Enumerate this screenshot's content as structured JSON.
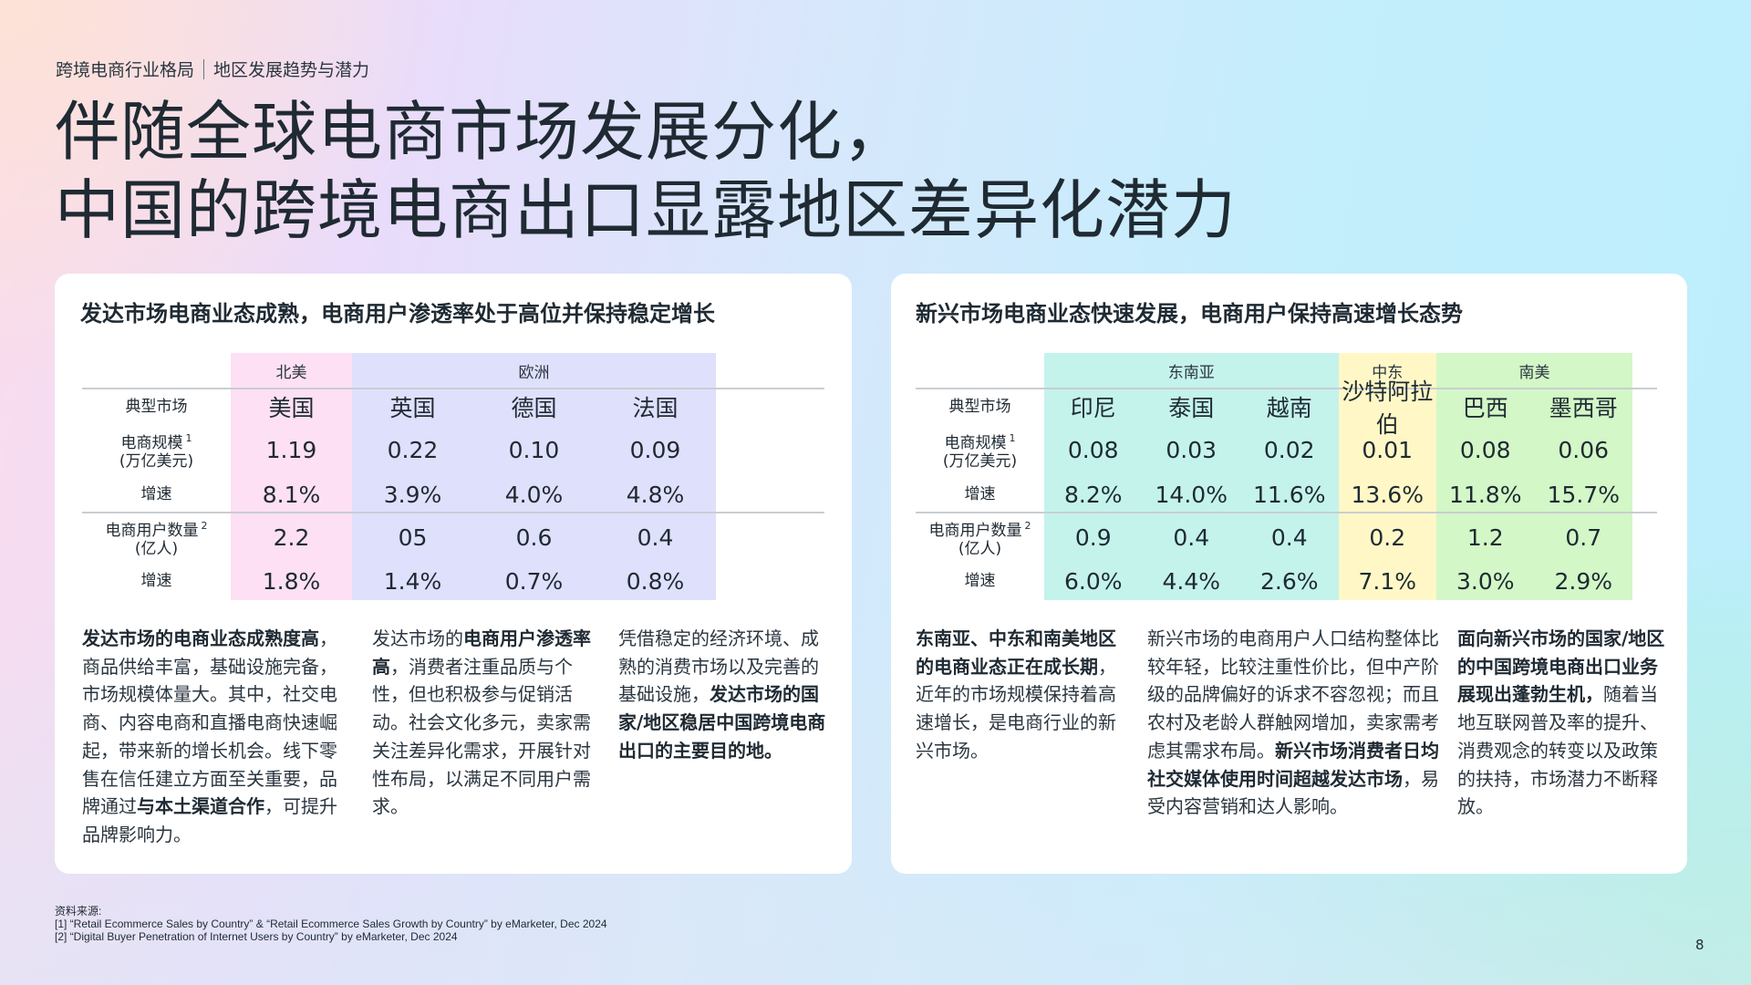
{
  "breadcrumb": {
    "section": "跨境电商行业格局",
    "subsection": "地区发展趋势与潜力"
  },
  "title": {
    "line1": "伴随全球电商市场发展分化，",
    "line2": "中国的跨境电商出口显露地区差异化潜力"
  },
  "colors": {
    "north_america": "#fde0f3",
    "europe": "#dfe0fb",
    "southeast_asia": "#c4f3ec",
    "middle_east": "#fff8c6",
    "south_america": "#d3f7c7",
    "divider": "#c9cdd3",
    "text": "#1f2a33"
  },
  "left_card": {
    "title": "发达市场电商业态成熟，电商用户渗透率处于高位并保持稳定增长",
    "table": {
      "row_labels": {
        "market": "典型市场",
        "scale": "电商规模",
        "scale_note": "1",
        "scale_unit": "(万亿美元)",
        "scale_growth": "增速",
        "users": "电商用户数量",
        "users_note": "2",
        "users_unit": "(亿人)",
        "users_growth": "增速"
      },
      "regions": [
        {
          "name": "北美",
          "span": 1
        },
        {
          "name": "欧洲",
          "span": 3
        }
      ],
      "columns": [
        {
          "market": "美国",
          "scale": "1.19",
          "scale_growth": "8.1%",
          "users": "2.2",
          "users_growth": "1.8%"
        },
        {
          "market": "英国",
          "scale": "0.22",
          "scale_growth": "3.9%",
          "users": "05",
          "users_growth": "1.4%"
        },
        {
          "market": "德国",
          "scale": "0.10",
          "scale_growth": "4.0%",
          "users": "0.6",
          "users_growth": "0.7%"
        },
        {
          "market": "法国",
          "scale": "0.09",
          "scale_growth": "4.8%",
          "users": "0.4",
          "users_growth": "0.8%"
        }
      ]
    },
    "paragraphs": [
      {
        "segments": [
          {
            "text": "发达市场的电商业态成熟度高",
            "bold": true
          },
          {
            "text": "，商品供给丰富，基础设施完备，市场规模体量大。其中，社交电商、内容电商和直播电商快速崛起，带来新的增长机会。线下零售在信任建立方面至关重要，品牌通过",
            "bold": false
          },
          {
            "text": "与本土渠道合作",
            "bold": true
          },
          {
            "text": "，可提升品牌影响力。",
            "bold": false
          }
        ]
      },
      {
        "segments": [
          {
            "text": "发达市场的",
            "bold": false
          },
          {
            "text": "电商用户渗透率高",
            "bold": true
          },
          {
            "text": "，消费者注重品质与个性，但也积极参与促销活动。社会文化多元，卖家需关注差异化需求，开展针对性布局，以满足不同用户需求。",
            "bold": false
          }
        ]
      },
      {
        "segments": [
          {
            "text": "凭借稳定的经济环境、成熟的消费市场以及完善的基础设施，",
            "bold": false
          },
          {
            "text": "发达市场的国家/地区稳居中国跨境电商出口的主要目的地。",
            "bold": true
          }
        ]
      }
    ]
  },
  "right_card": {
    "title": "新兴市场电商业态快速发展，电商用户保持高速增长态势",
    "table": {
      "row_labels": {
        "market": "典型市场",
        "scale": "电商规模",
        "scale_note": "1",
        "scale_unit": "(万亿美元)",
        "scale_growth": "增速",
        "users": "电商用户数量",
        "users_note": "2",
        "users_unit": "(亿人)",
        "users_growth": "增速"
      },
      "regions": [
        {
          "name": "东南亚",
          "span": 3
        },
        {
          "name": "中东",
          "span": 1
        },
        {
          "name": "南美",
          "span": 2
        }
      ],
      "columns": [
        {
          "market": "印尼",
          "scale": "0.08",
          "scale_growth": "8.2%",
          "users": "0.9",
          "users_growth": "6.0%"
        },
        {
          "market": "泰国",
          "scale": "0.03",
          "scale_growth": "14.0%",
          "users": "0.4",
          "users_growth": "4.4%"
        },
        {
          "market": "越南",
          "scale": "0.02",
          "scale_growth": "11.6%",
          "users": "0.4",
          "users_growth": "2.6%"
        },
        {
          "market": "沙特阿拉伯",
          "scale": "0.01",
          "scale_growth": "13.6%",
          "users": "0.2",
          "users_growth": "7.1%"
        },
        {
          "market": "巴西",
          "scale": "0.08",
          "scale_growth": "11.8%",
          "users": "1.2",
          "users_growth": "3.0%"
        },
        {
          "market": "墨西哥",
          "scale": "0.06",
          "scale_growth": "15.7%",
          "users": "0.7",
          "users_growth": "2.9%"
        }
      ]
    },
    "paragraphs": [
      {
        "segments": [
          {
            "text": "东南亚、中东和南美地区的电商业态正在成长期",
            "bold": true
          },
          {
            "text": "，近年的市场规模保持着高速增长，是电商行业的新兴市场。",
            "bold": false
          }
        ]
      },
      {
        "segments": [
          {
            "text": "新兴市场的电商用户人口结构整体比较年轻，比较注重性价比，但中产阶级的品牌偏好的诉求不容忽视；而且农村及老龄人群触网增加，卖家需考虑其需求布局。",
            "bold": false
          },
          {
            "text": "新兴市场消费者日均社交媒体使用时间超越发达市场",
            "bold": true
          },
          {
            "text": "，易受内容营销和达人影响。",
            "bold": false
          }
        ]
      },
      {
        "segments": [
          {
            "text": "面向新兴市场的国家/地区的中国跨境电商出口业务展现出蓬勃生机，",
            "bold": true
          },
          {
            "text": "随着当地互联网普及率的提升、消费观念的转变以及政策的扶持，市场潜力不断释放。",
            "bold": false
          }
        ]
      }
    ]
  },
  "sources": {
    "heading": "资料来源:",
    "items": [
      "[1] “Retail Ecommerce Sales by Country” & “Retail Ecommerce Sales Growth by Country” by eMarketer, Dec 2024",
      "[2] “Digital Buyer Penetration of Internet Users by Country” by eMarketer, Dec 2024"
    ]
  },
  "page_number": "8"
}
